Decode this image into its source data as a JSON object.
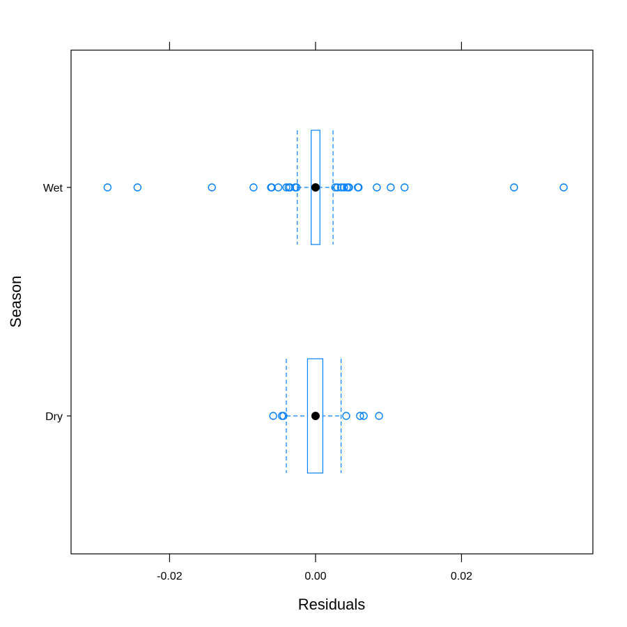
{
  "chart_data": {
    "type": "boxplot",
    "orientation": "horizontal",
    "xlabel": "Residuals",
    "ylabel": "Season",
    "xlim": [
      -0.0335,
      0.038
    ],
    "x_ticks": [
      {
        "value": -0.02,
        "label": "-0.02"
      },
      {
        "value": 0.0,
        "label": "0.00"
      },
      {
        "value": 0.02,
        "label": "0.02"
      }
    ],
    "top_ticks": [
      -0.02,
      0.0,
      0.02
    ],
    "grid": false,
    "color": "#0080ff",
    "median_color": "#000000",
    "categories": [
      {
        "name": "Wet",
        "whisker_low": -0.0025,
        "q1": -0.0006,
        "median": 0.0,
        "q3": 0.0006,
        "whisker_high": 0.0024,
        "outliers": [
          -0.0285,
          -0.0244,
          -0.0142,
          -0.0085,
          -0.0061,
          -0.006,
          -0.0051,
          -0.004,
          -0.0037,
          -0.0035,
          -0.0028,
          -0.0026,
          0.0027,
          0.003,
          0.0035,
          0.0039,
          0.0043,
          0.0045,
          0.0046,
          0.0058,
          0.0059,
          0.0084,
          0.0103,
          0.0122,
          0.0272,
          0.034
        ]
      },
      {
        "name": "Dry",
        "whisker_low": -0.004,
        "q1": -0.0011,
        "median": 0.0,
        "q3": 0.001,
        "whisker_high": 0.0035,
        "outliers": [
          -0.0058,
          -0.0046,
          -0.0044,
          0.0042,
          0.0061,
          0.0066,
          0.0087
        ]
      }
    ]
  }
}
